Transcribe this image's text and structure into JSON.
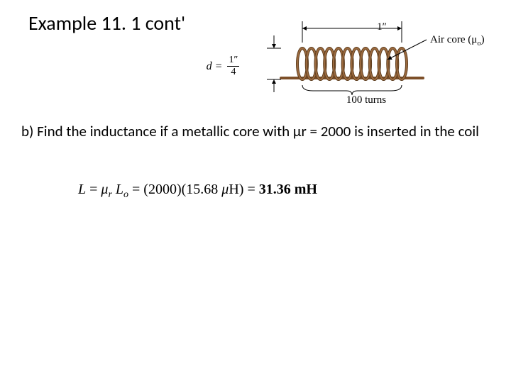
{
  "title": "Example 11. 1 cont'",
  "figure": {
    "d_label_prefix": "d = ",
    "d_numerator": "1″",
    "d_denominator": "4",
    "length_label": "1″",
    "turns_label": "100 turns",
    "aircore_label": "Air core (μ",
    "aircore_sub": "o",
    "aircore_close": ")",
    "coil_turns_drawn": 12,
    "coil_color": "#9b6a3f",
    "coil_stroke": "#5a3a1b",
    "rod_color": "#7d4f28",
    "dim_color": "#000000"
  },
  "problem": "b) Find the inductance if a metallic core with μr = 2000 is inserted in the coil",
  "equation": {
    "L": "L",
    "eq1": " = ",
    "mu": "μ",
    "r": "r",
    "space": " ",
    "Lo_L": "L",
    "Lo_o": "o",
    "eq2": " = (2000)(15.68 ",
    "muH": "μ",
    "H": "H) = ",
    "result": "31.36 mH"
  },
  "colors": {
    "text": "#000000",
    "background": "#ffffff"
  }
}
